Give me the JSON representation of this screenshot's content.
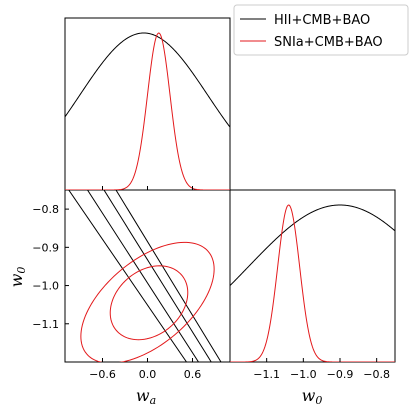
{
  "chart_data": {
    "type": "triangle-corner-plot",
    "parameters": [
      "wa",
      "w0"
    ],
    "axes": {
      "wa": {
        "label_main": "w",
        "label_sub": "a",
        "range": [
          -1.1,
          1.1
        ],
        "ticks": [
          -0.6,
          0.0,
          0.6
        ],
        "tick_labels": [
          "−0.6",
          "0.0",
          "0.6"
        ]
      },
      "w0": {
        "label_main": "w",
        "label_sub": "0",
        "range": [
          -1.2,
          -0.75
        ],
        "ticks": [
          -1.1,
          -1.0,
          -0.9,
          -0.8
        ],
        "tick_labels": [
          "−1.1",
          "−1.0",
          "−0.9",
          "−0.8"
        ]
      }
    },
    "legend": {
      "placement": "top-right",
      "entries": [
        {
          "label": "HII+CMB+BAO",
          "color": "#000000"
        },
        {
          "label": "SNIa+CMB+BAO",
          "color": "#e31a1c"
        }
      ]
    },
    "series": [
      {
        "name": "HII+CMB+BAO",
        "color": "#000000",
        "marginal_wa": {
          "mean": -0.05,
          "sigma": 0.85
        },
        "marginal_w0": {
          "mean": -0.9,
          "sigma": 0.25
        },
        "contour_lines": [
          {
            "level": "1sigma",
            "p1": [
              -0.8,
              -0.75
            ],
            "p2": [
              0.68,
              -1.2
            ]
          },
          {
            "level": "1sigma",
            "p1": [
              -0.58,
              -0.75
            ],
            "p2": [
              0.85,
              -1.2
            ]
          },
          {
            "level": "2sigma",
            "p1": [
              -1.05,
              -0.75
            ],
            "p2": [
              0.52,
              -1.2
            ]
          },
          {
            "level": "2sigma",
            "p1": [
              -0.42,
              -0.75
            ],
            "p2": [
              0.98,
              -1.2
            ]
          }
        ]
      },
      {
        "name": "SNIa+CMB+BAO",
        "color": "#e31a1c",
        "marginal_wa": {
          "mean": 0.15,
          "sigma": 0.15
        },
        "marginal_w0": {
          "mean": -1.04,
          "sigma": 0.03
        },
        "contours": [
          {
            "level": "1sigma",
            "center": [
              0.02,
              -1.045
            ],
            "semi_axes": [
              0.78,
              0.07
            ],
            "angle_deg": -50
          },
          {
            "level": "2sigma",
            "center": [
              0.0,
              -1.045
            ],
            "semi_axes": [
              1.02,
              0.13
            ],
            "angle_deg": -50
          }
        ]
      }
    ]
  }
}
